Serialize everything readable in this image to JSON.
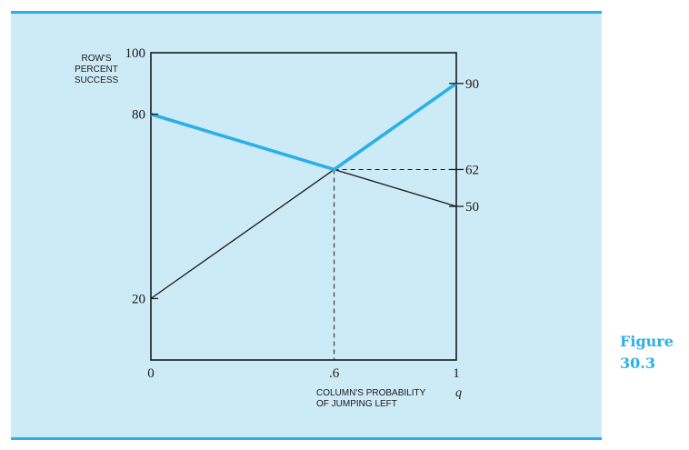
{
  "figure": {
    "label_line1": "Figure",
    "label_line2": "30.3"
  },
  "colors": {
    "accent": "#29b0e6",
    "panel": "#cdeaf7",
    "ink": "#1a1a1a"
  },
  "chart_data": {
    "type": "line",
    "ylabel": [
      "ROW'S",
      "PERCENT",
      "SUCCESS"
    ],
    "xlabel": [
      "COLUMN'S PROBABILITY",
      "OF JUMPING LEFT"
    ],
    "x_variable": "q",
    "xlim": [
      0,
      1
    ],
    "ylim": [
      0,
      100
    ],
    "x_ticks": [
      {
        "value": 0,
        "label": "0"
      },
      {
        "value": 0.6,
        "label": ".6"
      },
      {
        "value": 1,
        "label": "1"
      }
    ],
    "left_y_ticks": [
      {
        "value": 100,
        "label": "100"
      },
      {
        "value": 80,
        "label": "80"
      },
      {
        "value": 20,
        "label": "20"
      }
    ],
    "right_y_ticks": [
      {
        "value": 90,
        "label": "90"
      },
      {
        "value": 62,
        "label": "62"
      },
      {
        "value": 50,
        "label": "50"
      }
    ],
    "series": [
      {
        "points": [
          [
            0,
            80
          ],
          [
            1,
            50
          ]
        ],
        "style": "thin"
      },
      {
        "points": [
          [
            0,
            20
          ],
          [
            1,
            90
          ]
        ],
        "style": "thin"
      },
      {
        "points": [
          [
            0,
            80
          ],
          [
            0.6,
            62
          ],
          [
            1,
            90
          ]
        ],
        "style": "highlight"
      }
    ],
    "reference_point": {
      "x": 0.6,
      "y": 62
    },
    "grid": false
  }
}
